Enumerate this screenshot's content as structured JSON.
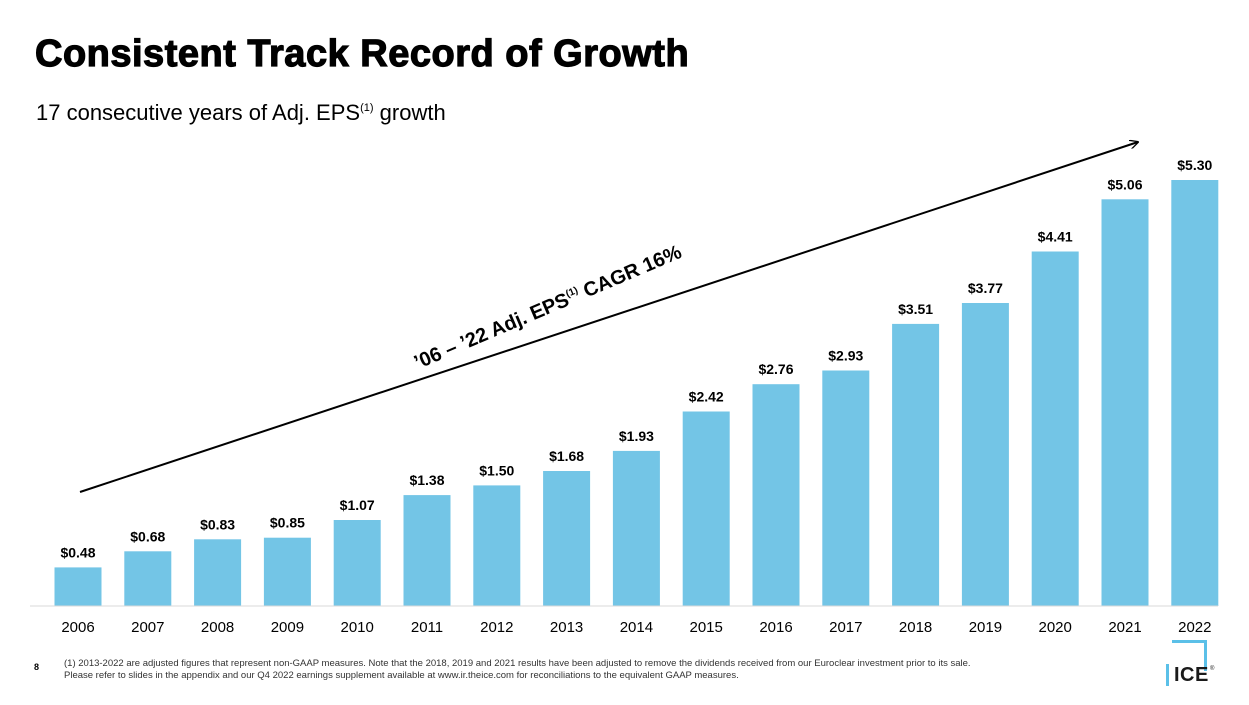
{
  "title": "Consistent Track Record of Growth",
  "subtitle": {
    "text": "17 consecutive years of Adj. EPS",
    "sup": "(1)",
    "suffix": " growth"
  },
  "annotation": {
    "prefix": "’06 – ’22 Adj. EPS",
    "sup": "(1)",
    "suffix": " CAGR 16%"
  },
  "chart_data": {
    "type": "bar",
    "categories": [
      "2006",
      "2007",
      "2008",
      "2009",
      "2010",
      "2011",
      "2012",
      "2013",
      "2014",
      "2015",
      "2016",
      "2017",
      "2018",
      "2019",
      "2020",
      "2021",
      "2022"
    ],
    "values": [
      0.48,
      0.68,
      0.83,
      0.85,
      1.07,
      1.38,
      1.5,
      1.68,
      1.93,
      2.42,
      2.76,
      2.93,
      3.51,
      3.77,
      4.41,
      5.06,
      5.3
    ],
    "labels": [
      "$0.48",
      "$0.68",
      "$0.83",
      "$0.85",
      "$1.07",
      "$1.38",
      "$1.50",
      "$1.68",
      "$1.93",
      "$2.42",
      "$2.76",
      "$2.93",
      "$3.51",
      "$3.77",
      "$4.41",
      "$5.06",
      "$5.30"
    ],
    "bar_color": "#73C5E6",
    "ylim": [
      0,
      5.3
    ],
    "grid": false,
    "title": "",
    "xlabel": "",
    "ylabel": ""
  },
  "footer": {
    "page_number": "8",
    "footnote_line1": "(1)   2013-2022 are adjusted figures that represent non-GAAP measures. Note that the 2018, 2019 and 2021 results have been adjusted to remove the dividends received from our Euroclear investment prior to its sale.",
    "footnote_line2": "Please refer to slides in the appendix and our Q4 2022 earnings supplement available at www.ir.theice.com for reconciliations to the equivalent GAAP measures."
  },
  "logo": {
    "text": "ICE",
    "mark": "®",
    "accent": "#5BC0E8"
  }
}
